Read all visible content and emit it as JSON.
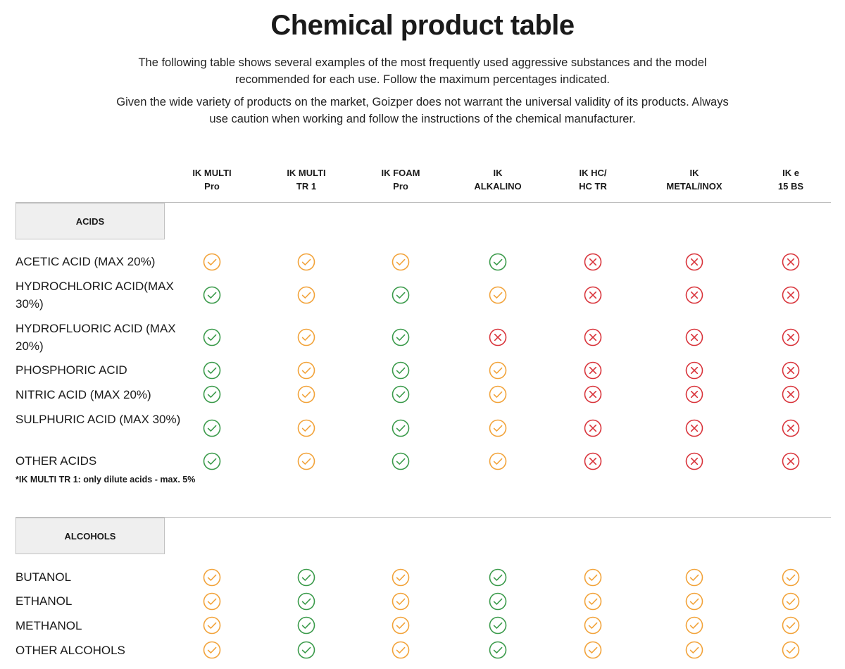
{
  "title": "Chemical product table",
  "intro": [
    "The following table shows several examples of the most frequently used aggressive substances and the model recommended for each use. Follow the maximum percentages indicated.",
    "Given the wide variety of products on the market, Goizper does not warrant the universal validity of its products. Always use caution when working and follow the instructions of the chemical manufacturer."
  ],
  "columns": [
    {
      "line1": "IK MULTI",
      "line2": "Pro"
    },
    {
      "line1": "IK MULTI",
      "line2": "TR 1"
    },
    {
      "line1": "IK FOAM",
      "line2": "Pro"
    },
    {
      "line1": "IK",
      "line2": "ALKALINO"
    },
    {
      "line1": "IK HC/",
      "line2": "HC TR"
    },
    {
      "line1": "IK",
      "line2": "METAL/INOX"
    },
    {
      "line1": "IK e",
      "line2": "15 BS"
    }
  ],
  "legend_colors": {
    "recommended": "#3a9a4a",
    "caution": "#f2a33a",
    "not_recommended": "#d9343b"
  },
  "icon_names": {
    "recommended": "green-check-circle-icon",
    "caution": "orange-check-circle-icon",
    "not_recommended": "red-x-circle-icon"
  },
  "sections": [
    {
      "label": "ACIDS",
      "rows": [
        {
          "label": "ACETIC ACID (MAX 20%)",
          "marks": [
            "caution",
            "caution",
            "caution",
            "recommended",
            "not_recommended",
            "not_recommended",
            "not_recommended"
          ]
        },
        {
          "label": "HYDROCHLORIC ACID(MAX 30%)",
          "marks": [
            "recommended",
            "caution",
            "recommended",
            "caution",
            "not_recommended",
            "not_recommended",
            "not_recommended"
          ]
        },
        {
          "label": "HYDROFLUORIC ACID (MAX 20%)",
          "marks": [
            "recommended",
            "caution",
            "recommended",
            "not_recommended",
            "not_recommended",
            "not_recommended",
            "not_recommended"
          ]
        },
        {
          "label": "PHOSPHORIC ACID",
          "marks": [
            "recommended",
            "caution",
            "recommended",
            "caution",
            "not_recommended",
            "not_recommended",
            "not_recommended"
          ]
        },
        {
          "label": "NITRIC ACID (MAX 20%)",
          "marks": [
            "recommended",
            "caution",
            "recommended",
            "caution",
            "not_recommended",
            "not_recommended",
            "not_recommended"
          ]
        },
        {
          "label": "SULPHURIC ACID (MAX 30%)",
          "marks": [
            "recommended",
            "caution",
            "recommended",
            "caution",
            "not_recommended",
            "not_recommended",
            "not_recommended"
          ]
        },
        {
          "label": "OTHER ACIDS",
          "marks": [
            "recommended",
            "caution",
            "recommended",
            "caution",
            "not_recommended",
            "not_recommended",
            "not_recommended"
          ]
        }
      ],
      "footnote": "*IK MULTI TR 1: only dilute acids - max. 5%"
    },
    {
      "label": "ALCOHOLS",
      "rows": [
        {
          "label": "BUTANOL",
          "marks": [
            "caution",
            "recommended",
            "caution",
            "recommended",
            "caution",
            "caution",
            "caution"
          ]
        },
        {
          "label": "ETHANOL",
          "marks": [
            "caution",
            "recommended",
            "caution",
            "recommended",
            "caution",
            "caution",
            "caution"
          ]
        },
        {
          "label": "METHANOL",
          "marks": [
            "caution",
            "recommended",
            "caution",
            "recommended",
            "caution",
            "caution",
            "caution"
          ]
        },
        {
          "label": "OTHER ALCOHOLS",
          "marks": [
            "caution",
            "recommended",
            "caution",
            "recommended",
            "caution",
            "caution",
            "caution"
          ]
        }
      ]
    }
  ]
}
